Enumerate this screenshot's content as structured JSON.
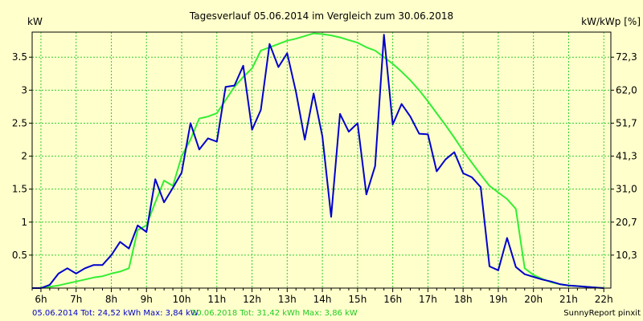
{
  "chart_data": {
    "type": "line",
    "title": "Tagesverlauf 05.06.2014 im Vergleich zum 30.06.2018",
    "ylabel_left": "kW",
    "ylabel_right": "kW/kWp [%]",
    "xlim": [
      5.75,
      22.2
    ],
    "ylim": [
      0,
      3.88
    ],
    "x_ticks": [
      {
        "v": 6,
        "label": "6h"
      },
      {
        "v": 7,
        "label": "7h"
      },
      {
        "v": 8,
        "label": "8h"
      },
      {
        "v": 9,
        "label": "9h"
      },
      {
        "v": 10,
        "label": "10h"
      },
      {
        "v": 11,
        "label": "11h"
      },
      {
        "v": 12,
        "label": "12h"
      },
      {
        "v": 13,
        "label": "13h"
      },
      {
        "v": 14,
        "label": "14h"
      },
      {
        "v": 15,
        "label": "15h"
      },
      {
        "v": 16,
        "label": "16h"
      },
      {
        "v": 17,
        "label": "17h"
      },
      {
        "v": 18,
        "label": "18h"
      },
      {
        "v": 19,
        "label": "19h"
      },
      {
        "v": 20,
        "label": "20h"
      },
      {
        "v": 21,
        "label": "21h"
      },
      {
        "v": 22,
        "label": "22h"
      }
    ],
    "y_ticks_left": [
      {
        "v": 0.5,
        "label": "0.5"
      },
      {
        "v": 1,
        "label": "1"
      },
      {
        "v": 1.5,
        "label": "1.5"
      },
      {
        "v": 2,
        "label": "2"
      },
      {
        "v": 2.5,
        "label": "2.5"
      },
      {
        "v": 3,
        "label": "3"
      },
      {
        "v": 3.5,
        "label": "3.5"
      }
    ],
    "y_ticks_right": [
      {
        "v": 0.5,
        "label": "10,3"
      },
      {
        "v": 1,
        "label": "20,7"
      },
      {
        "v": 1.5,
        "label": "31,0"
      },
      {
        "v": 2,
        "label": "41,3"
      },
      {
        "v": 2.5,
        "label": "51,7"
      },
      {
        "v": 3,
        "label": "62,0"
      },
      {
        "v": 3.5,
        "label": "72,3"
      }
    ],
    "x_minor_step": 0.25,
    "grid": true,
    "series": [
      {
        "name": "05.06.2014",
        "color": "#0000cc",
        "x": [
          5.75,
          6.0,
          6.25,
          6.5,
          6.75,
          7.0,
          7.25,
          7.5,
          7.75,
          8.0,
          8.25,
          8.5,
          8.75,
          9.0,
          9.25,
          9.5,
          9.75,
          10.0,
          10.25,
          10.5,
          10.75,
          11.0,
          11.25,
          11.5,
          11.75,
          12.0,
          12.25,
          12.5,
          12.75,
          13.0,
          13.25,
          13.5,
          13.75,
          14.0,
          14.25,
          14.5,
          14.75,
          15.0,
          15.25,
          15.5,
          15.75,
          16.0,
          16.25,
          16.5,
          16.75,
          17.0,
          17.25,
          17.5,
          17.75,
          18.0,
          18.25,
          18.5,
          18.75,
          19.0,
          19.25,
          19.5,
          19.75,
          20.0,
          20.25,
          20.5,
          20.75,
          21.0,
          21.25,
          21.5,
          21.75,
          22.0
        ],
        "y": [
          0,
          0,
          0.05,
          0.22,
          0.3,
          0.22,
          0.3,
          0.35,
          0.35,
          0.5,
          0.7,
          0.6,
          0.95,
          0.85,
          1.65,
          1.3,
          1.52,
          1.75,
          2.5,
          2.1,
          2.27,
          2.22,
          3.05,
          3.07,
          3.37,
          2.4,
          2.7,
          3.7,
          3.35,
          3.56,
          2.97,
          2.25,
          2.95,
          2.3,
          1.08,
          2.64,
          2.37,
          2.5,
          1.42,
          1.85,
          3.84,
          2.48,
          2.79,
          2.6,
          2.34,
          2.33,
          1.77,
          1.95,
          2.06,
          1.74,
          1.68,
          1.53,
          0.33,
          0.27,
          0.76,
          0.32,
          0.21,
          0.17,
          0.13,
          0.1,
          0.06,
          0.04,
          0.03,
          0.02,
          0.01,
          0
        ]
      },
      {
        "name": "30.06.2018",
        "color": "#33ee33",
        "x": [
          5.75,
          6.0,
          6.25,
          6.5,
          6.75,
          7.0,
          7.25,
          7.5,
          7.75,
          8.0,
          8.25,
          8.5,
          8.75,
          9.0,
          9.25,
          9.5,
          9.75,
          10.0,
          10.25,
          10.5,
          10.75,
          11.0,
          11.25,
          11.5,
          11.75,
          12.0,
          12.25,
          12.5,
          12.75,
          13.0,
          13.25,
          13.5,
          13.75,
          14.0,
          14.25,
          14.5,
          14.75,
          15.0,
          15.25,
          15.5,
          15.75,
          16.0,
          16.25,
          16.5,
          16.75,
          17.0,
          17.25,
          17.5,
          17.75,
          18.0,
          18.25,
          18.5,
          18.75,
          19.0,
          19.25,
          19.5,
          19.75,
          20.0,
          20.25,
          20.5,
          20.75,
          21.0,
          21.25,
          21.5,
          21.75,
          22.0
        ],
        "y": [
          0,
          0,
          0.02,
          0.04,
          0.07,
          0.1,
          0.13,
          0.16,
          0.18,
          0.22,
          0.25,
          0.3,
          0.88,
          0.95,
          1.3,
          1.63,
          1.55,
          2.0,
          2.25,
          2.57,
          2.6,
          2.65,
          2.85,
          3.05,
          3.2,
          3.33,
          3.6,
          3.65,
          3.7,
          3.75,
          3.78,
          3.82,
          3.86,
          3.85,
          3.83,
          3.8,
          3.76,
          3.72,
          3.65,
          3.6,
          3.5,
          3.4,
          3.28,
          3.15,
          3.0,
          2.83,
          2.65,
          2.47,
          2.28,
          2.08,
          1.9,
          1.72,
          1.55,
          1.45,
          1.35,
          1.2,
          0.3,
          0.2,
          0.14,
          0.09,
          0.06,
          0.04,
          0.03,
          0.02,
          0.01,
          0
        ]
      }
    ],
    "legend": {
      "entry1": "05.06.2014 Tot: 24,52 kWh Max: 3,84 kW",
      "entry2": "30.06.2018 Tot: 31,42 kWh Max: 3,86 kW"
    },
    "footer": "SunnyReport pinxit"
  }
}
